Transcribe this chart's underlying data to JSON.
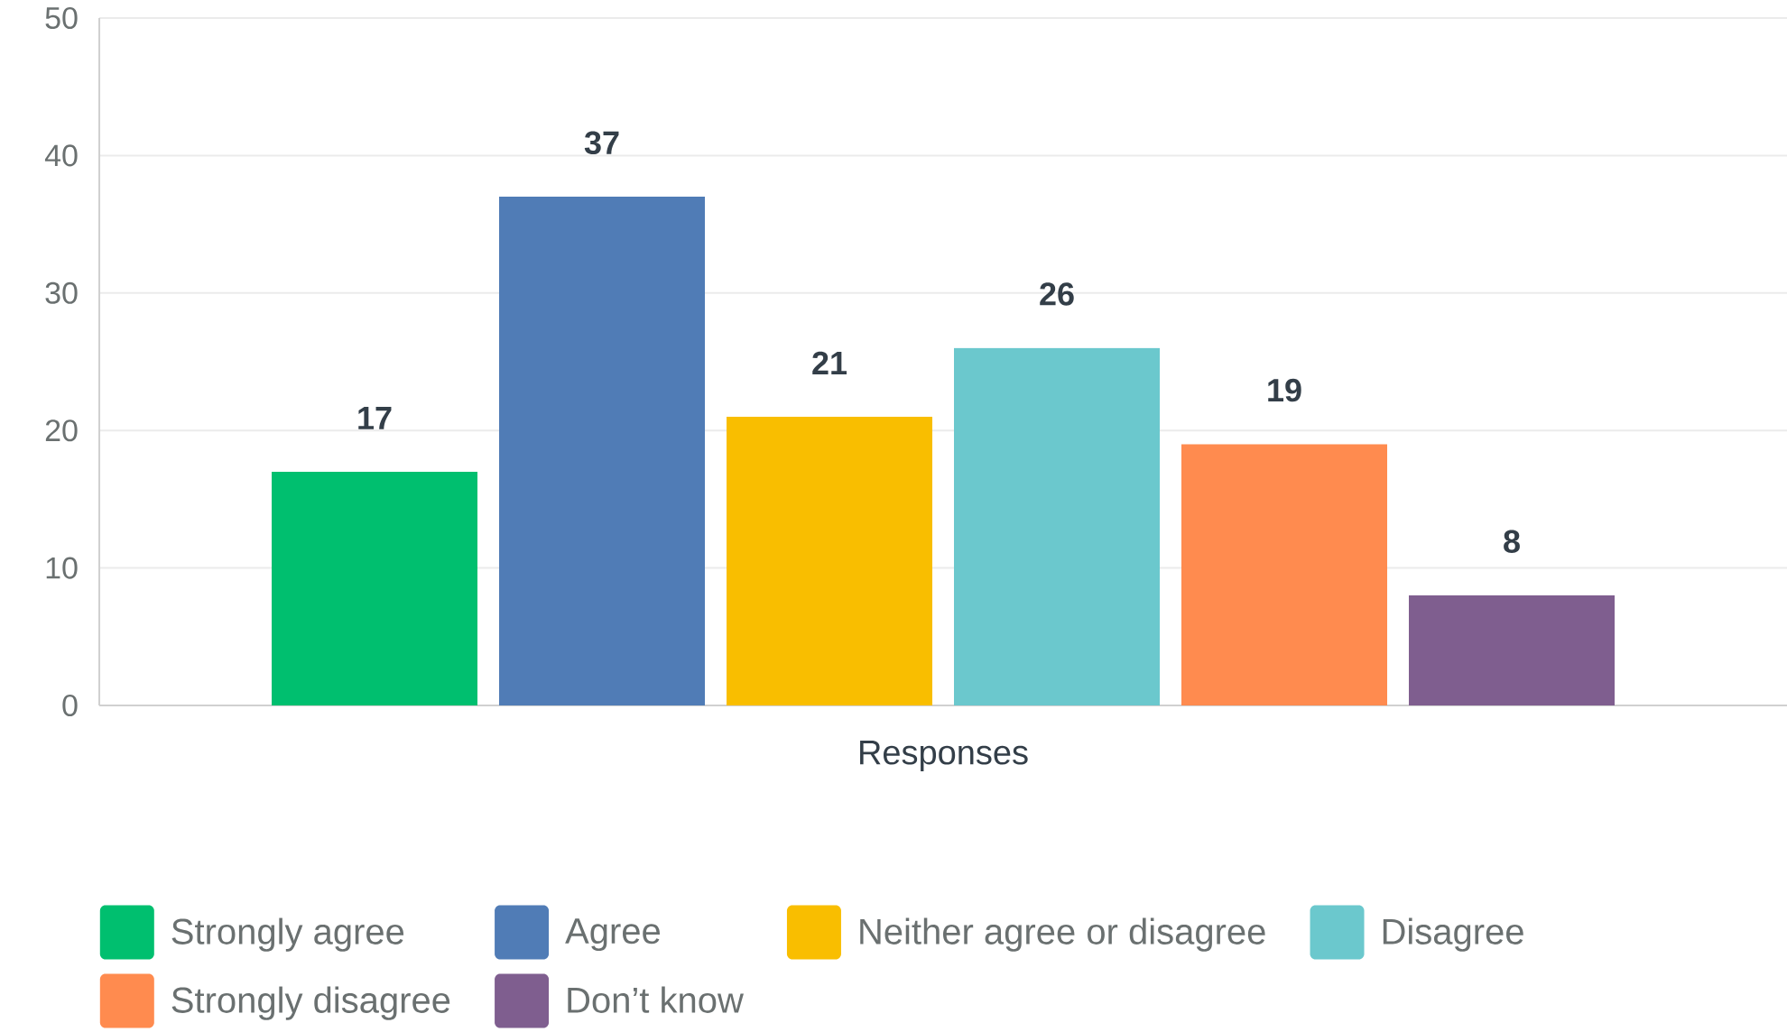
{
  "chart_data": {
    "type": "bar",
    "categories": [
      "Responses"
    ],
    "series": [
      {
        "name": "Strongly agree",
        "color": "#00bf6f",
        "values": [
          17
        ]
      },
      {
        "name": "Agree",
        "color": "#507cb6",
        "values": [
          37
        ]
      },
      {
        "name": "Neither agree or disagree",
        "color": "#f9be00",
        "values": [
          21
        ]
      },
      {
        "name": "Disagree",
        "color": "#6bc8cd",
        "values": [
          26
        ]
      },
      {
        "name": "Strongly disagree",
        "color": "#ff8b4f",
        "values": [
          19
        ]
      },
      {
        "name": "Don’t know",
        "color": "#7f5e8f",
        "values": [
          8
        ]
      }
    ],
    "ylim": [
      0,
      50
    ],
    "yticks": [
      0,
      10,
      20,
      30,
      40,
      50
    ],
    "grid": "y",
    "legend": "bottom",
    "data_labels": true
  }
}
